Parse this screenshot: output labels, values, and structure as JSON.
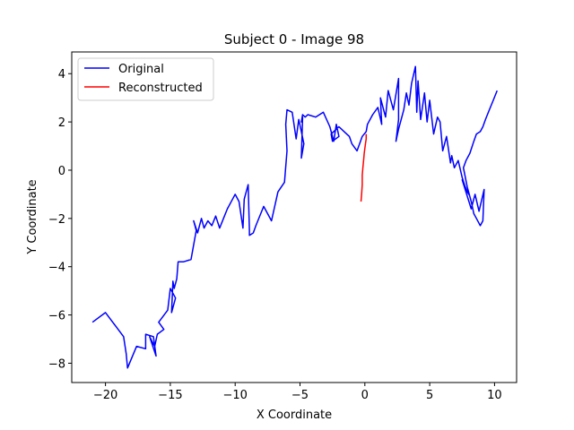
{
  "chart_data": {
    "type": "line",
    "title": "Subject 0 - Image 98",
    "xlabel": "X Coordinate",
    "ylabel": "Y Coordinate",
    "xlim": [
      -22.6,
      11.7
    ],
    "ylim": [
      -8.8,
      4.9
    ],
    "xticks": [
      -20,
      -15,
      -10,
      -5,
      0,
      5,
      10
    ],
    "yticks": [
      -8,
      -6,
      -4,
      -2,
      0,
      2,
      4
    ],
    "xtick_labels": [
      "−20",
      "−15",
      "−10",
      "−5",
      "0",
      "5",
      "10"
    ],
    "ytick_labels": [
      "−8",
      "−6",
      "−4",
      "−2",
      "0",
      "2",
      "4"
    ],
    "grid": false,
    "legend_position": "top-left",
    "series": [
      {
        "name": "Original",
        "color": "#0000ff",
        "x": [
          -21.0,
          -20.0,
          -18.6,
          -18.4,
          -18.3,
          -17.6,
          -16.9,
          -16.9,
          -16.3,
          -16.1,
          -16.6,
          -16.2,
          -16.0,
          -15.5,
          -15.9,
          -15.2,
          -15.0,
          -14.6,
          -14.9,
          -14.8,
          -14.7,
          -14.5,
          -14.4,
          -14.0,
          -13.4,
          -13.0,
          -13.2,
          -12.9,
          -12.6,
          -12.4,
          -12.1,
          -11.8,
          -11.5,
          -11.2,
          -10.9,
          -10.6,
          -10.2,
          -10.0,
          -9.7,
          -9.4,
          -9.3,
          -9.0,
          -8.9,
          -8.9,
          -8.6,
          -8.4,
          -7.8,
          -7.2,
          -6.7,
          -6.2,
          -6.0,
          -6.1,
          -6.0,
          -5.6,
          -5.3,
          -5.1,
          -4.9,
          -4.7,
          -4.9,
          -4.8,
          -4.9,
          -4.8,
          -4.6,
          -4.4,
          -3.8,
          -3.2,
          -2.7,
          -2.4,
          -2.2,
          -2.0,
          -2.5,
          -2.6,
          -2.0,
          -1.6,
          -1.2,
          -1.0,
          -0.6,
          -0.2,
          0.1,
          0.2,
          0.6,
          1.0,
          1.3,
          1.2,
          1.6,
          1.8,
          2.2,
          2.6,
          2.6,
          2.4,
          2.6,
          3.0,
          3.2,
          3.4,
          3.6,
          3.9,
          4.0,
          4.1,
          4.3,
          4.6,
          4.8,
          5.0,
          5.3,
          5.6,
          5.8,
          6.0,
          6.3,
          6.6,
          6.7,
          6.9,
          7.2,
          7.5,
          7.8,
          8.0,
          7.5,
          8.2,
          8.5,
          8.8,
          9.2,
          9.1,
          8.9,
          8.6,
          8.4,
          8.2,
          7.9,
          7.6,
          7.8,
          8.1,
          8.4,
          8.6,
          8.9,
          9.1,
          9.3,
          9.6,
          9.9,
          10.2
        ],
        "y": [
          -6.3,
          -5.9,
          -6.9,
          -7.6,
          -8.2,
          -7.3,
          -7.4,
          -6.8,
          -6.9,
          -7.7,
          -6.9,
          -7.3,
          -6.8,
          -6.6,
          -6.3,
          -5.8,
          -4.9,
          -5.3,
          -5.9,
          -4.6,
          -4.9,
          -4.5,
          -3.8,
          -3.8,
          -3.7,
          -2.5,
          -2.1,
          -2.6,
          -2.0,
          -2.4,
          -2.1,
          -2.3,
          -1.9,
          -2.4,
          -2.0,
          -1.6,
          -1.2,
          -1.0,
          -1.3,
          -2.4,
          -1.2,
          -0.6,
          -2.5,
          -2.7,
          -2.6,
          -2.3,
          -1.5,
          -2.1,
          -0.9,
          -0.5,
          0.8,
          1.9,
          2.5,
          2.4,
          1.3,
          2.1,
          1.6,
          1.1,
          0.5,
          2.2,
          2.0,
          2.3,
          2.2,
          2.3,
          2.2,
          2.4,
          1.8,
          1.2,
          1.9,
          1.4,
          1.2,
          1.5,
          1.8,
          1.6,
          1.4,
          1.1,
          0.8,
          1.4,
          1.6,
          1.9,
          2.3,
          2.6,
          1.9,
          3.0,
          2.2,
          3.3,
          2.5,
          3.8,
          2.1,
          1.2,
          1.7,
          2.5,
          3.2,
          2.7,
          3.6,
          4.3,
          2.4,
          3.7,
          2.1,
          3.2,
          2.0,
          2.9,
          1.5,
          2.2,
          2.0,
          0.8,
          1.4,
          0.3,
          0.6,
          0.1,
          0.4,
          -0.3,
          -0.8,
          -1.0,
          -0.4,
          -1.6,
          -1.0,
          -1.7,
          -0.8,
          -2.1,
          -2.3,
          -2.0,
          -1.8,
          -1.3,
          -0.7,
          0.1,
          0.4,
          0.7,
          1.2,
          1.5,
          1.6,
          1.8,
          2.1,
          2.5,
          2.9,
          3.3
        ]
      },
      {
        "name": "Reconstructed",
        "color": "#ff0000",
        "x": [
          -0.3,
          -0.25,
          -0.2,
          -0.2,
          -0.15,
          -0.1,
          -0.05,
          0.0,
          0.05,
          0.1,
          0.1
        ],
        "y": [
          -1.3,
          -1.0,
          -0.6,
          -0.2,
          0.1,
          0.4,
          0.7,
          0.9,
          1.1,
          1.3,
          1.5
        ]
      }
    ]
  }
}
